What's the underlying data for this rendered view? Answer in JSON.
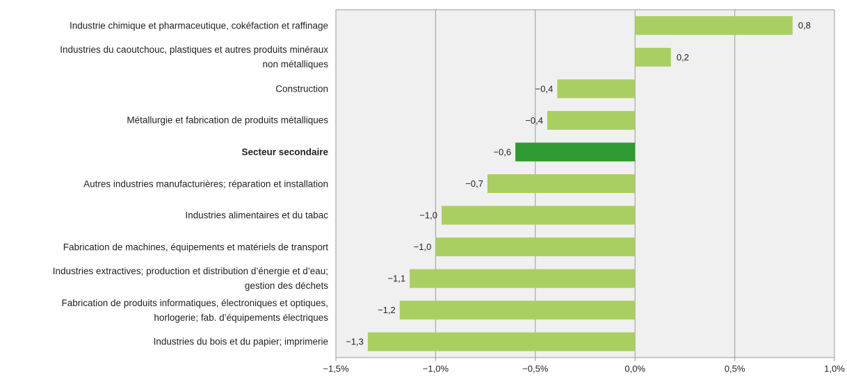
{
  "chart_data": {
    "type": "hbar",
    "categories": [
      "Industrie chimique et pharmaceutique, cokéfaction et raffinage",
      "Industries du caoutchouc, plastiques et autres produits minéraux\nnon métalliques",
      "Construction",
      "Métallurgie et fabrication de produits métalliques",
      "Secteur secondaire",
      "Autres industries manufacturières; réparation et installation",
      "Industries alimentaires et du tabac",
      "Fabrication de machines, équipements et matériels de transport",
      "Industries extractives; production et distribution d’énergie et d’eau;\ngestion des déchets",
      "Fabrication de produits informatiques, électroniques et optiques,\nhorlogerie; fab. d’équipements électriques",
      "Industries du bois et du papier; imprimerie"
    ],
    "values": [
      0.79,
      0.18,
      -0.39,
      -0.44,
      -0.6,
      -0.74,
      -0.97,
      -1.0,
      -1.13,
      -1.18,
      -1.34
    ],
    "value_labels": [
      "0,8",
      "0,2",
      "−0,4",
      "−0,4",
      "−0,6",
      "−0,7",
      "−1,0",
      "−1,0",
      "−1,1",
      "−1,2",
      "−1,3"
    ],
    "color": "#a9cf62",
    "colors": [
      "#a9cf62",
      "#a9cf62",
      "#a9cf62",
      "#a9cf62",
      "#2f9a31",
      "#a9cf62",
      "#a9cf62",
      "#a9cf62",
      "#a9cf62",
      "#a9cf62",
      "#a9cf62"
    ],
    "xlim": [
      -1.5,
      1.0
    ],
    "xticks": [
      {
        "value": -1.5,
        "label": "−1,5%"
      },
      {
        "value": -1.0,
        "label": "−1,0%"
      },
      {
        "value": -0.5,
        "label": "−0,5%"
      },
      {
        "value": 0,
        "label": "0,0%"
      },
      {
        "value": 0.5,
        "label": "0,5%"
      },
      {
        "value": 1.0,
        "label": "1,0%"
      }
    ],
    "grid": true
  }
}
